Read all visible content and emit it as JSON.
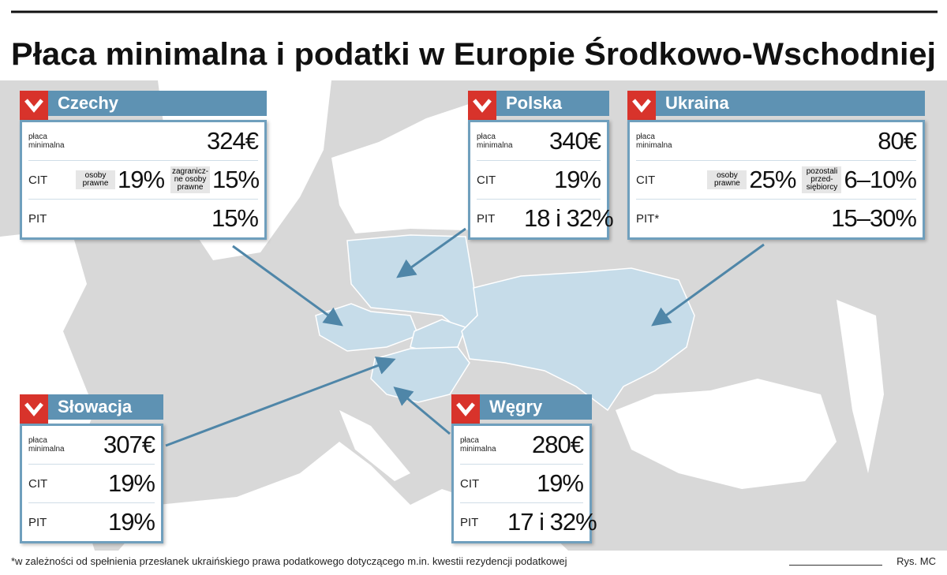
{
  "title": "Płaca minimalna i podatki w Europie Środkowo-Wschodniej",
  "countries": [
    {
      "name": "Czechy",
      "rows": [
        {
          "label": "płaca minimalna",
          "parts": [
            {
              "value": "324€"
            }
          ]
        },
        {
          "label": "CIT",
          "parts": [
            {
              "note": "osoby prawne",
              "value": "19%"
            },
            {
              "note": "zagranicz-ne osoby prawne",
              "value": "15%"
            }
          ]
        },
        {
          "label": "PIT",
          "parts": [
            {
              "value": "15%"
            }
          ]
        }
      ]
    },
    {
      "name": "Polska",
      "rows": [
        {
          "label": "płaca minimalna",
          "parts": [
            {
              "value": "340€"
            }
          ]
        },
        {
          "label": "CIT",
          "parts": [
            {
              "value": "19%"
            }
          ]
        },
        {
          "label": "PIT",
          "parts": [
            {
              "value": "18 i 32%"
            }
          ]
        }
      ]
    },
    {
      "name": "Ukraina",
      "rows": [
        {
          "label": "płaca minimalna",
          "parts": [
            {
              "value": "80€"
            }
          ]
        },
        {
          "label": "CIT",
          "parts": [
            {
              "note": "osoby prawne",
              "value": "25%"
            },
            {
              "note": "pozostali przed-siębiorcy",
              "value": "6–10%"
            }
          ]
        },
        {
          "label": "PIT*",
          "parts": [
            {
              "value": "15–30%"
            }
          ]
        }
      ]
    },
    {
      "name": "Słowacja",
      "rows": [
        {
          "label": "płaca minimalna",
          "parts": [
            {
              "value": "307€"
            }
          ]
        },
        {
          "label": "CIT",
          "parts": [
            {
              "value": "19%"
            }
          ]
        },
        {
          "label": "PIT",
          "parts": [
            {
              "value": "19%"
            }
          ]
        }
      ]
    },
    {
      "name": "Węgry",
      "rows": [
        {
          "label": "płaca minimalna",
          "parts": [
            {
              "value": "280€"
            }
          ]
        },
        {
          "label": "CIT",
          "parts": [
            {
              "value": "19%"
            }
          ]
        },
        {
          "label": "PIT",
          "parts": [
            {
              "value": "17 i 32%"
            }
          ]
        }
      ]
    }
  ],
  "footnote": "*w zależności od spełnienia przesłanek ukraińskiego prawa podatkowego dotyczącego m.in. kwestii rezydencji podatkowej",
  "credit": "Rys. MC"
}
